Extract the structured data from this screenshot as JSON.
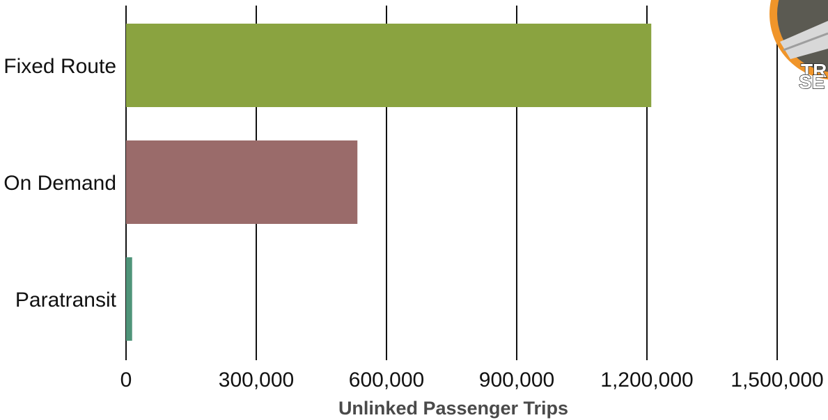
{
  "chart_data": {
    "type": "bar",
    "orientation": "horizontal",
    "categories": [
      "Fixed Route",
      "On Demand",
      "Paratransit"
    ],
    "values": [
      1210000,
      533000,
      14000
    ],
    "colors": [
      "#8aa340",
      "#9a6b6a",
      "#4f9479"
    ],
    "xlabel": "Unlinked Passenger Trips",
    "ylabel": "",
    "title": "",
    "xlim": [
      0,
      1500000
    ],
    "xticks": [
      0,
      300000,
      600000,
      900000,
      1200000,
      1500000
    ],
    "xtick_labels": [
      "0",
      "300,000",
      "600,000",
      "900,000",
      "1,200,000",
      "1,500,000"
    ],
    "grid": true,
    "legend": "none"
  },
  "logo": {
    "text_line1": "TR",
    "text_line2": "SE",
    "ring_color": "#f0952a"
  }
}
